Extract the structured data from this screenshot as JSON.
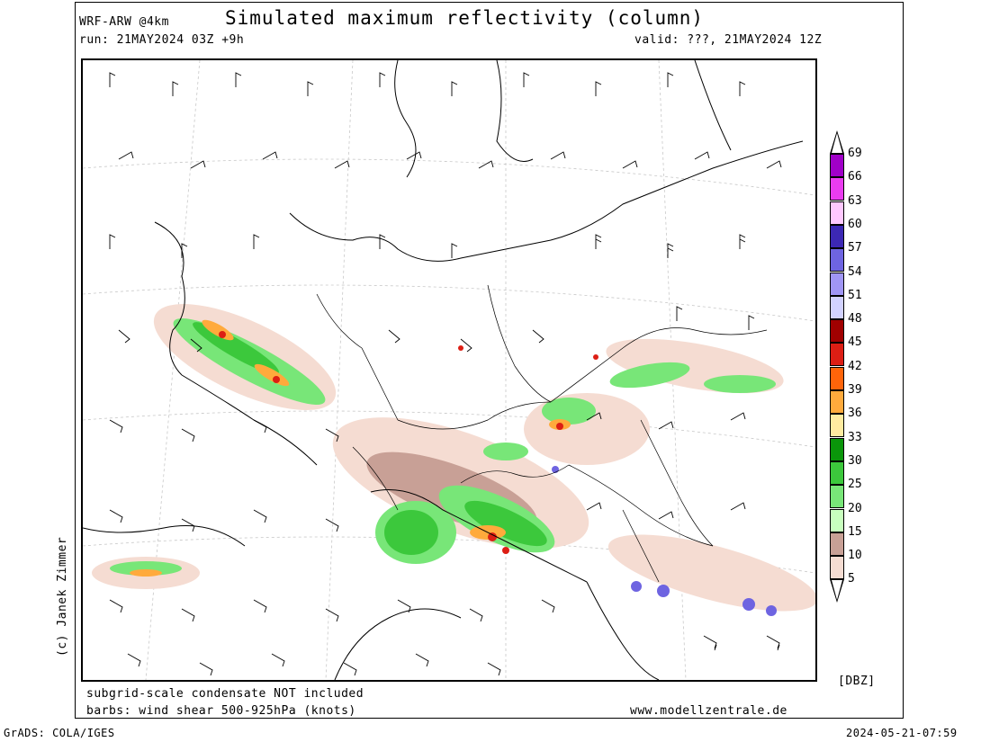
{
  "header": {
    "model": "WRF-ARW @4km",
    "title": "Simulated maximum reflectivity (column)",
    "run": "run: 21MAY2024 03Z +9h",
    "valid": "valid: ???, 21MAY2024 12Z"
  },
  "footer": {
    "note1": "subgrid-scale condensate NOT included",
    "note2": "barbs: wind shear 500-925hPa (knots)",
    "site": "www.modellzentrale.de",
    "grads": "GrADS: COLA/IGES",
    "timestamp": "2024-05-21-07:59"
  },
  "credit": "(c) Janek Zimmer",
  "legend": {
    "unit": "[DBZ]",
    "levels": [
      "69",
      "66",
      "63",
      "60",
      "57",
      "54",
      "51",
      "48",
      "45",
      "42",
      "39",
      "36",
      "33",
      "30",
      "25",
      "20",
      "15",
      "10",
      "5"
    ],
    "colors": [
      "#a000c8",
      "#ea3cf0",
      "#ffc8ff",
      "#3c28b4",
      "#6e64e1",
      "#a096f5",
      "#d2d2ff",
      "#a00000",
      "#dc1e14",
      "#ff640a",
      "#ffaa3c",
      "#ffeba0",
      "#0a960a",
      "#3cc83c",
      "#78e678",
      "#c8ffbe",
      "#c8a096",
      "#f5dcd2"
    ]
  }
}
